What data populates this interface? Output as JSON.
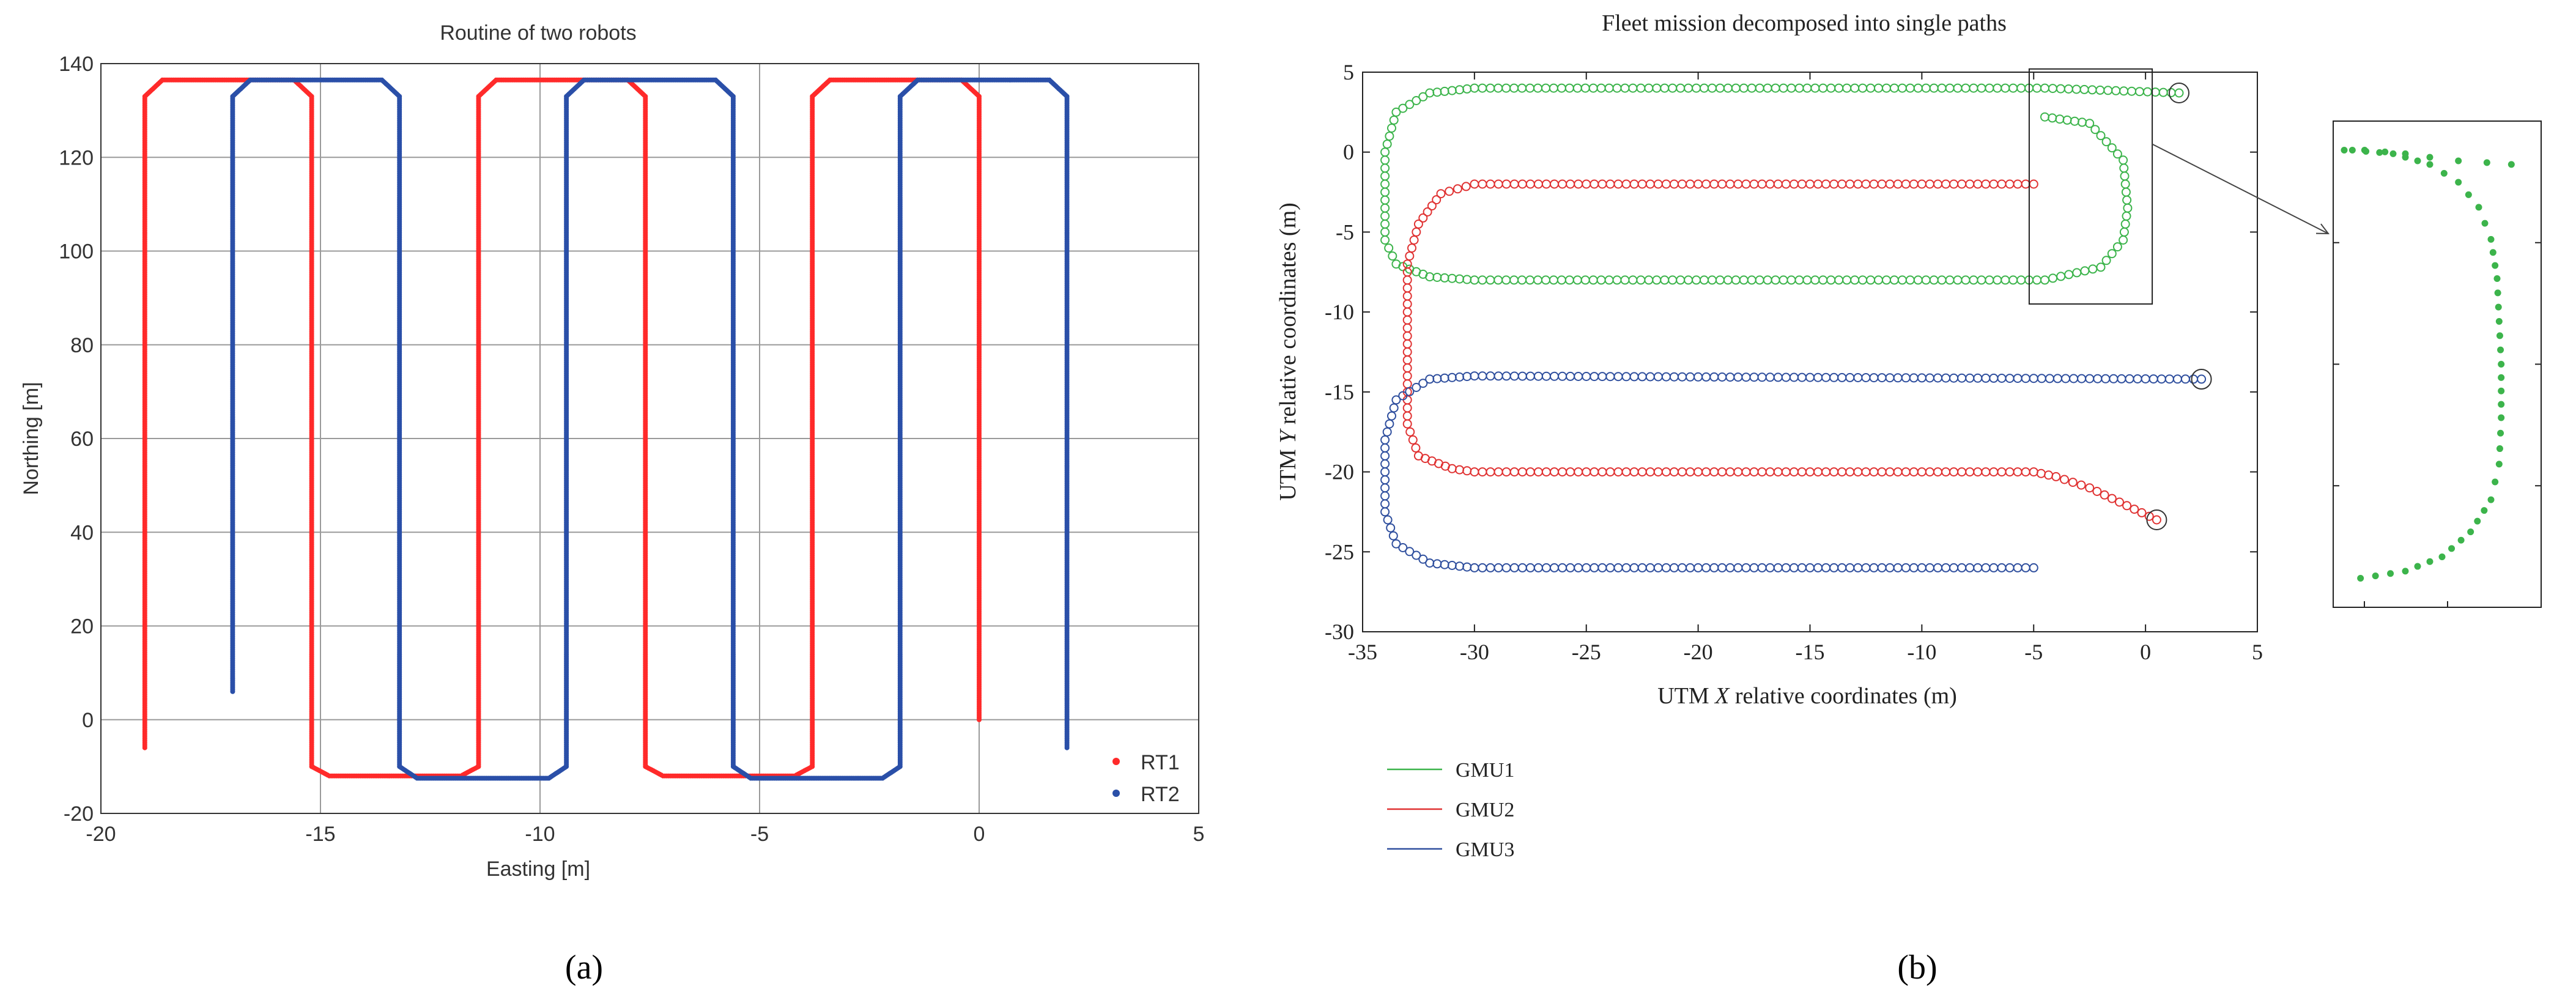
{
  "chart_data": [
    {
      "panel": "a",
      "type": "scatter",
      "title": "Routine of two robots",
      "xlabel": "Easting [m]",
      "ylabel": "Northing [m]",
      "xlim": [
        -20,
        5
      ],
      "ylim": [
        -20,
        140
      ],
      "xticks": [
        -20,
        -15,
        -10,
        -5,
        0,
        5
      ],
      "yticks": [
        -20,
        0,
        20,
        40,
        60,
        80,
        100,
        120,
        140
      ],
      "grid": true,
      "legend_position": "bottom-right",
      "series": [
        {
          "name": "RT1",
          "color": "#ff2a2a",
          "path": [
            [
              -19,
              -6
            ],
            [
              -19,
              133
            ],
            [
              -18.6,
              136.5
            ],
            [
              -15.6,
              136.5
            ],
            [
              -15.2,
              133
            ],
            [
              -15.2,
              -10
            ],
            [
              -14.8,
              -12
            ],
            [
              -11.8,
              -12
            ],
            [
              -11.4,
              -10
            ],
            [
              -11.4,
              133
            ],
            [
              -11,
              136.5
            ],
            [
              -8,
              136.5
            ],
            [
              -7.6,
              133
            ],
            [
              -7.6,
              -10
            ],
            [
              -7.2,
              -12
            ],
            [
              -4.2,
              -12
            ],
            [
              -3.8,
              -10
            ],
            [
              -3.8,
              133
            ],
            [
              -3.4,
              136.5
            ],
            [
              -0.4,
              136.5
            ],
            [
              0,
              133
            ],
            [
              0,
              0
            ]
          ]
        },
        {
          "name": "RT2",
          "color": "#2a4fa8",
          "path": [
            [
              -17,
              6
            ],
            [
              -17,
              133
            ],
            [
              -16.6,
              136.5
            ],
            [
              -13.6,
              136.5
            ],
            [
              -13.2,
              133
            ],
            [
              -13.2,
              -10
            ],
            [
              -12.8,
              -12.5
            ],
            [
              -9.8,
              -12.5
            ],
            [
              -9.4,
              -10
            ],
            [
              -9.4,
              133
            ],
            [
              -9,
              136.5
            ],
            [
              -6,
              136.5
            ],
            [
              -5.6,
              133
            ],
            [
              -5.6,
              -10
            ],
            [
              -5.2,
              -12.5
            ],
            [
              -2.2,
              -12.5
            ],
            [
              -1.8,
              -10
            ],
            [
              -1.8,
              133
            ],
            [
              -1.4,
              136.5
            ],
            [
              1.6,
              136.5
            ],
            [
              2,
              133
            ],
            [
              2,
              -6
            ]
          ]
        }
      ],
      "sublabel": "(a)"
    },
    {
      "panel": "b",
      "type": "scatter",
      "title": "Fleet mission decomposed into single paths",
      "xlabel_main": "UTM ",
      "xlabel_var": "X",
      "xlabel_rest": " relative coordinates (m)",
      "ylabel_main": "UTM ",
      "ylabel_var": "Y",
      "ylabel_rest": "  relative coordinates (m)",
      "xlim": [
        -35,
        5
      ],
      "ylim": [
        -30,
        5
      ],
      "xticks": [
        -35,
        -30,
        -25,
        -20,
        -15,
        -10,
        -5,
        0,
        5
      ],
      "yticks": [
        -30,
        -25,
        -20,
        -15,
        -10,
        -5,
        0,
        5
      ],
      "grid": false,
      "series": [
        {
          "name": "GMU1",
          "color": "#3cb44b",
          "path": [
            [
              1.5,
              3.7
            ],
            [
              -4.5,
              4
            ],
            [
              -30,
              4
            ],
            [
              -32,
              3.7
            ],
            [
              -33.5,
              2.5
            ],
            [
              -34,
              0
            ],
            [
              -34,
              -5.5
            ],
            [
              -33.5,
              -7
            ],
            [
              -32,
              -7.8
            ],
            [
              -30,
              -8
            ],
            [
              -4.5,
              -8
            ],
            [
              -2,
              -7.2
            ],
            [
              -1,
              -5.5
            ],
            [
              -0.8,
              -3.5
            ],
            [
              -1,
              -0.5
            ],
            [
              -2.5,
              1.8
            ],
            [
              -4.5,
              2.2
            ]
          ]
        },
        {
          "name": "GMU2",
          "color": "#e03232",
          "path": [
            [
              -5,
              -2
            ],
            [
              -30,
              -2
            ],
            [
              -31.5,
              -2.6
            ],
            [
              -32.5,
              -4.5
            ],
            [
              -33,
              -7
            ],
            [
              -33,
              -17
            ],
            [
              -32.5,
              -19
            ],
            [
              -31,
              -19.8
            ],
            [
              -30,
              -20
            ],
            [
              -5,
              -20
            ],
            [
              -4,
              -20.3
            ],
            [
              -2.5,
              -21
            ],
            [
              0.5,
              -23
            ]
          ]
        },
        {
          "name": "GMU3",
          "color": "#2f4f9e",
          "path": [
            [
              2.5,
              -14.2
            ],
            [
              -30,
              -14
            ],
            [
              -32,
              -14.2
            ],
            [
              -33.5,
              -15.5
            ],
            [
              -34,
              -18
            ],
            [
              -34,
              -22.5
            ],
            [
              -33.5,
              -24.5
            ],
            [
              -32,
              -25.7
            ],
            [
              -30,
              -26
            ],
            [
              -5,
              -26
            ]
          ]
        }
      ],
      "end_markers": [
        [
          1.5,
          3.7
        ],
        [
          0.5,
          -23
        ],
        [
          2.5,
          -14.2
        ]
      ],
      "zoom_inset_points": [
        [
          -4.5,
          4
        ],
        [
          -3.5,
          3.9
        ],
        [
          -2.6,
          3.6
        ],
        [
          -1.9,
          3.1
        ],
        [
          -1.4,
          2.4
        ],
        [
          -1.1,
          1.5
        ],
        [
          -0.95,
          0.4
        ],
        [
          -0.9,
          -0.8
        ],
        [
          -0.85,
          -2
        ],
        [
          -0.85,
          -3.5
        ],
        [
          -0.9,
          -4.8
        ],
        [
          -1.1,
          -5.8
        ],
        [
          -1.6,
          -6.7
        ],
        [
          -2.3,
          -7.4
        ],
        [
          -3.2,
          -7.8
        ],
        [
          -4.3,
          -8
        ]
      ],
      "sublabel": "(b)"
    }
  ]
}
